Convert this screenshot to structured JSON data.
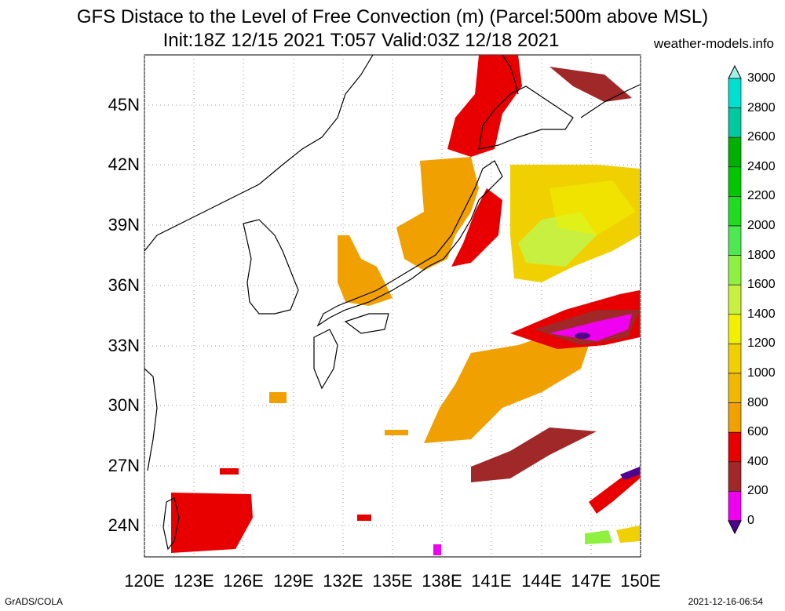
{
  "title_line1": "GFS Distace to the Level of Free Convection (m) (Parcel:500m above MSL)",
  "title_line2": "Init:18Z 12/15 2021 T:057 Valid:03Z 12/18 2021",
  "site": "weather-models.info",
  "lat_labels": [
    "45N",
    "42N",
    "39N",
    "36N",
    "33N",
    "30N",
    "27N",
    "24N"
  ],
  "lon_labels": [
    "120E",
    "123E",
    "126E",
    "129E",
    "132E",
    "135E",
    "138E",
    "141E",
    "144E",
    "147E",
    "150E"
  ],
  "colorbar": {
    "labels": [
      "3000",
      "2800",
      "2600",
      "2400",
      "2200",
      "2000",
      "1800",
      "1600",
      "1400",
      "1200",
      "1000",
      "800",
      "600",
      "400",
      "200",
      "0"
    ],
    "colors": [
      "#00e0d0",
      "#00c8a0",
      "#00b000",
      "#00c800",
      "#20dc20",
      "#50e850",
      "#90f040",
      "#c8f040",
      "#f0f000",
      "#f0d000",
      "#f0b800",
      "#f0a000",
      "#e80000",
      "#a02828",
      "#f000f0",
      "#500090",
      "#a0f0e8"
    ]
  },
  "footer_left": "GrADS/COLA",
  "footer_right": "2021-12-16-06:54"
}
